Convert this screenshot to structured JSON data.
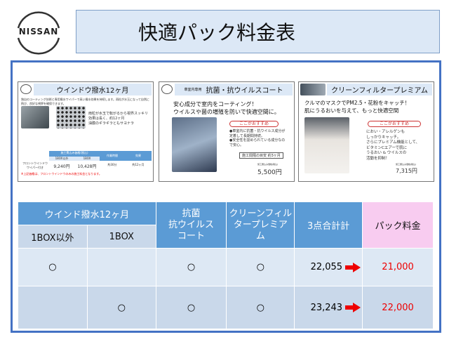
{
  "logo": "NISSAN",
  "title": "快適パック料金表",
  "cards": [
    {
      "title": "ウインドウ撥水12ヶ月",
      "intro": "独自のコーティング技術と専用撥水ワイパーで高い撥水効果を持続します。雨粒が水玉になって自然に飛び、良好な視界を確保できます。",
      "bullets": [
        "雨粒が水玉で転がるから視界スッキリ",
        "効果は長く、約12ヶ月",
        "油膜のギラギラともサヨナラ"
      ],
      "table_head": [
        "施工費込み価格(税込)",
        "作業時間",
        "効果"
      ],
      "table_sub": [
        "1BOX以外",
        "1BOX"
      ],
      "row_label": "フロントウインドウ ワイパー付き",
      "row": [
        "9,240円",
        "10,428円",
        "約30分",
        "約12ヶ月"
      ],
      "note": "※上記価格は、フロントウインドウのみの施工料金となります。"
    },
    {
      "badge": "車室内専用",
      "title": "抗菌・抗ウイルスコート",
      "headline": [
        "安心成分で室内をコーティング！",
        "ウイルスや菌の増殖を防いで快適空間に。"
      ],
      "pill": "ここがおすすめ",
      "bullets": [
        "●車室内に抗菌・抗ウイルス成分が定着して長期間持続。",
        "●安全性を認められている成分なので安心。"
      ],
      "period": "施工間隔の目安 約3ヶ月",
      "price_label": "施工費込み価格(税込)",
      "price": "5,500円"
    },
    {
      "title": "クリーンフィルタープレミアム",
      "headline": [
        "クルマのマスクでPM2.5・花粉をキャッチ！",
        "肌にうるおいを与えて、もっと快適空間"
      ],
      "pill": "ここがおすすめ",
      "body": [
        "におい・アレルゲンも",
        "しっかりキャッチ。",
        "さらにプレミアム機能として、",
        "ビタミンCエアーで肌に",
        "うるおい & ウイルスの",
        "活動を抑制！"
      ],
      "price_label": "施工費込み価格(税込)",
      "price": "7,315円"
    }
  ],
  "table": {
    "group_header": "ウインド撥水12ヶ月",
    "sub_headers": [
      "1BOX以外",
      "1BOX"
    ],
    "headers": [
      "抗菌\n抗ウイルス\nコート",
      "クリーンフィル\nタープレミア\nム",
      "3点合計計",
      "パック料金"
    ],
    "rows": [
      {
        "cells": [
          "○",
          "",
          "○",
          "○"
        ],
        "total": "22,055",
        "pack": "21,000"
      },
      {
        "cells": [
          "",
          "○",
          "○",
          "○"
        ],
        "total": "23,243",
        "pack": "22,000"
      }
    ]
  },
  "colors": {
    "frame": "#4472c4",
    "header": "#5b9bd5",
    "pack_header": "#f8ccf0",
    "price": "#e00000"
  }
}
